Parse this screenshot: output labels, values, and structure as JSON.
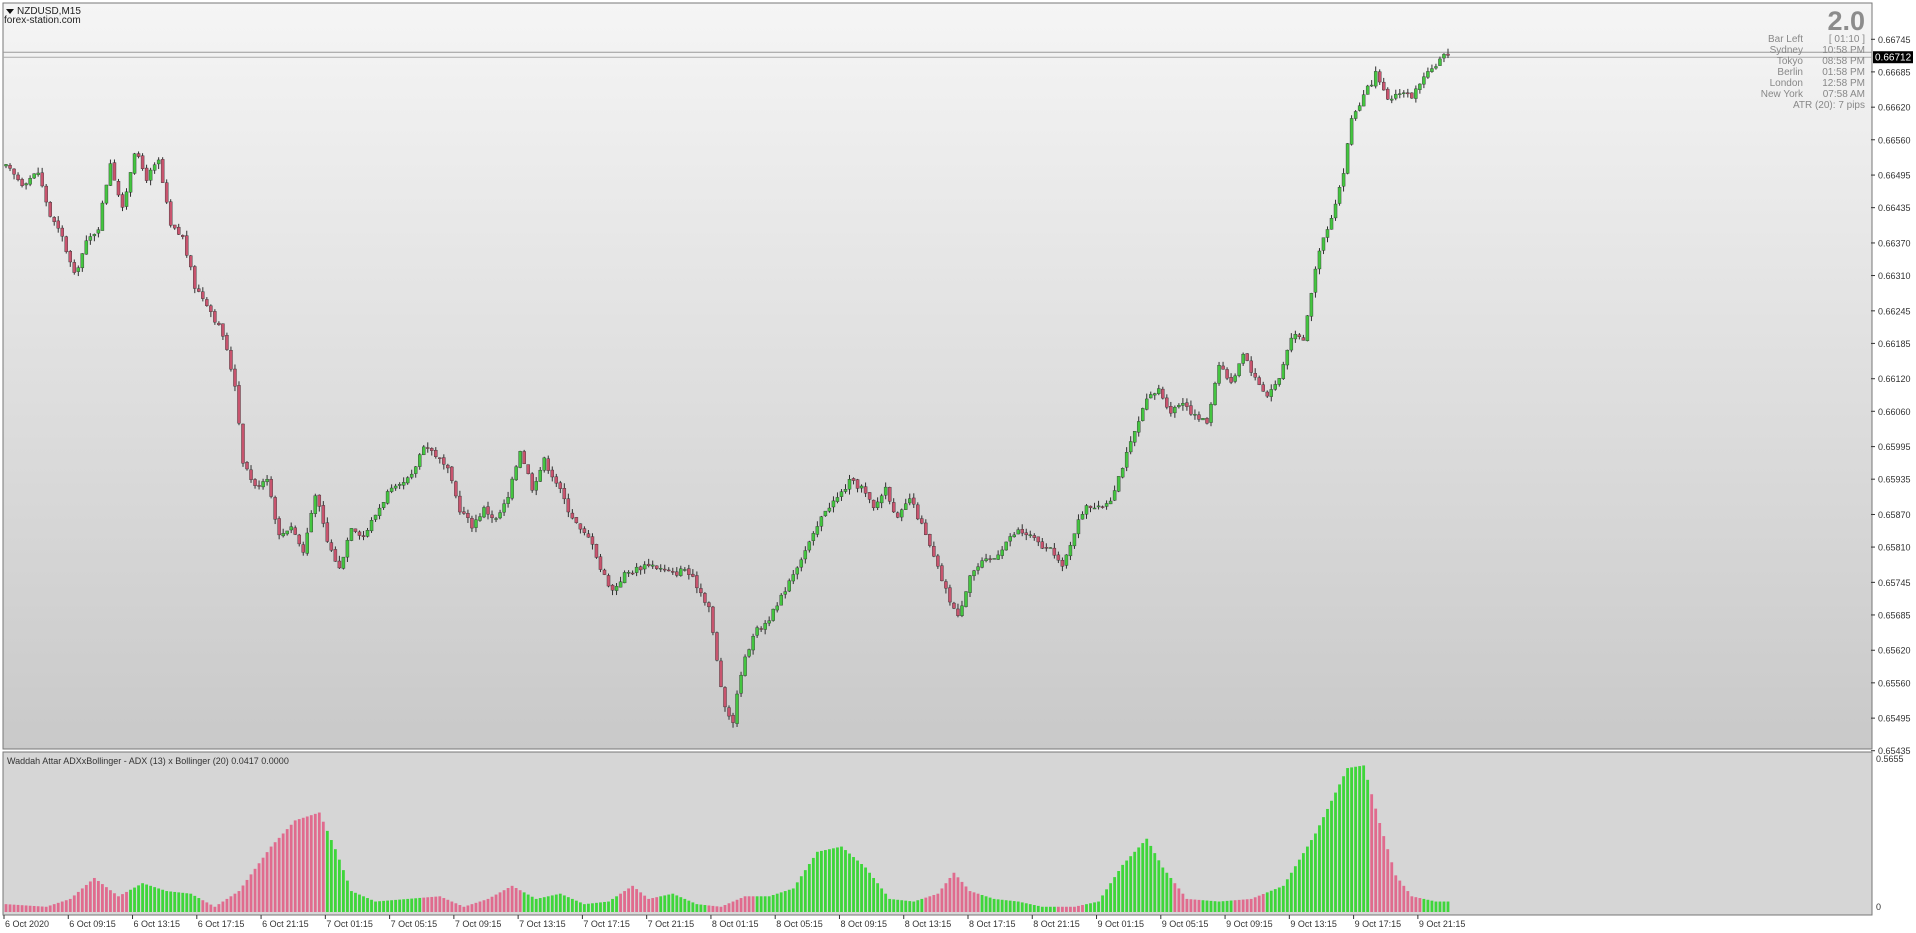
{
  "colors": {
    "bull": "#44c540",
    "bear": "#c8546e",
    "wick": "#2f2f2f",
    "hist_up": "#3ed63a",
    "hist_down": "#e06b8e",
    "bg_top": "#f5f5f5",
    "bg_bottom": "#c9c9c9"
  },
  "chart_data": [
    {
      "type": "candlestick",
      "title": "NZDUSD,M15",
      "watermark": "forex-station.com",
      "dropdown_icon": "triangle-down-icon",
      "ylim": [
        0.6544,
        0.6681
      ],
      "y_ticks": [
        "0.66745",
        "0.66685",
        "0.66620",
        "0.66560",
        "0.66495",
        "0.66435",
        "0.66370",
        "0.66310",
        "0.66245",
        "0.66185",
        "0.66120",
        "0.66060",
        "0.65995",
        "0.65935",
        "0.65870",
        "0.65810",
        "0.65745",
        "0.65685",
        "0.65620",
        "0.65560",
        "0.65495",
        "0.65435"
      ],
      "current_price": "0.66712",
      "x_ticks": [
        "6 Oct 2020",
        "6 Oct 09:15",
        "6 Oct 13:15",
        "6 Oct 17:15",
        "6 Oct 21:15",
        "7 Oct 01:15",
        "7 Oct 05:15",
        "7 Oct 09:15",
        "7 Oct 13:15",
        "7 Oct 17:15",
        "7 Oct 21:15",
        "8 Oct 01:15",
        "8 Oct 05:15",
        "8 Oct 09:15",
        "8 Oct 13:15",
        "8 Oct 17:15",
        "8 Oct 21:15",
        "9 Oct 01:15",
        "9 Oct 05:15",
        "9 Oct 09:15",
        "9 Oct 13:15",
        "9 Oct 17:15",
        "9 Oct 21:15"
      ],
      "close_path": [
        [
          0,
          0.6651
        ],
        [
          4,
          0.6648
        ],
        [
          8,
          0.665
        ],
        [
          11,
          0.6642
        ],
        [
          14,
          0.6638
        ],
        [
          17,
          0.6631
        ],
        [
          20,
          0.6637
        ],
        [
          23,
          0.664
        ],
        [
          26,
          0.6652
        ],
        [
          29,
          0.6643
        ],
        [
          32,
          0.6654
        ],
        [
          35,
          0.6649
        ],
        [
          38,
          0.6652
        ],
        [
          41,
          0.664
        ],
        [
          44,
          0.6638
        ],
        [
          47,
          0.6629
        ],
        [
          50,
          0.6626
        ],
        [
          54,
          0.662
        ],
        [
          57,
          0.6611
        ],
        [
          59,
          0.6597
        ],
        [
          62,
          0.6592
        ],
        [
          65,
          0.6594
        ],
        [
          68,
          0.6583
        ],
        [
          71,
          0.6585
        ],
        [
          74,
          0.658
        ],
        [
          77,
          0.6591
        ],
        [
          80,
          0.6582
        ],
        [
          83,
          0.6577
        ],
        [
          86,
          0.6585
        ],
        [
          89,
          0.6583
        ],
        [
          92,
          0.6587
        ],
        [
          95,
          0.6591
        ],
        [
          98,
          0.6592
        ],
        [
          101,
          0.6594
        ],
        [
          104,
          0.66
        ],
        [
          107,
          0.6598
        ],
        [
          110,
          0.6595
        ],
        [
          113,
          0.6588
        ],
        [
          116,
          0.6585
        ],
        [
          119,
          0.6588
        ],
        [
          122,
          0.6586
        ],
        [
          125,
          0.659
        ],
        [
          128,
          0.6599
        ],
        [
          131,
          0.6592
        ],
        [
          134,
          0.6597
        ],
        [
          137,
          0.6593
        ],
        [
          140,
          0.6588
        ],
        [
          143,
          0.6584
        ],
        [
          146,
          0.6582
        ],
        [
          148,
          0.6577
        ],
        [
          151,
          0.6573
        ],
        [
          154,
          0.6576
        ],
        [
          157,
          0.6577
        ],
        [
          160,
          0.6578
        ],
        [
          163,
          0.6577
        ],
        [
          166,
          0.6576
        ],
        [
          169,
          0.6577
        ],
        [
          172,
          0.6574
        ],
        [
          175,
          0.657
        ],
        [
          177,
          0.656
        ],
        [
          179,
          0.6551
        ],
        [
          181,
          0.6549
        ],
        [
          183,
          0.6558
        ],
        [
          186,
          0.6565
        ],
        [
          189,
          0.6567
        ],
        [
          192,
          0.657
        ],
        [
          195,
          0.6575
        ],
        [
          198,
          0.6579
        ],
        [
          201,
          0.6583
        ],
        [
          204,
          0.6588
        ],
        [
          207,
          0.659
        ],
        [
          210,
          0.6593
        ],
        [
          213,
          0.6592
        ],
        [
          216,
          0.6588
        ],
        [
          219,
          0.6592
        ],
        [
          222,
          0.6586
        ],
        [
          225,
          0.659
        ],
        [
          228,
          0.6585
        ],
        [
          231,
          0.6579
        ],
        [
          234,
          0.6573
        ],
        [
          237,
          0.6568
        ],
        [
          240,
          0.6576
        ],
        [
          243,
          0.6578
        ],
        [
          246,
          0.6579
        ],
        [
          249,
          0.6582
        ],
        [
          252,
          0.6584
        ],
        [
          255,
          0.6583
        ],
        [
          258,
          0.6581
        ],
        [
          261,
          0.658
        ],
        [
          263,
          0.6577
        ],
        [
          266,
          0.6584
        ],
        [
          269,
          0.6589
        ],
        [
          272,
          0.6588
        ],
        [
          275,
          0.659
        ],
        [
          278,
          0.6596
        ],
        [
          281,
          0.6602
        ],
        [
          284,
          0.6608
        ],
        [
          287,
          0.661
        ],
        [
          290,
          0.6606
        ],
        [
          293,
          0.6608
        ],
        [
          296,
          0.6605
        ],
        [
          299,
          0.6604
        ],
        [
          302,
          0.6615
        ],
        [
          305,
          0.6611
        ],
        [
          308,
          0.6617
        ],
        [
          311,
          0.6612
        ],
        [
          314,
          0.6609
        ],
        [
          317,
          0.6612
        ],
        [
          320,
          0.662
        ],
        [
          323,
          0.6619
        ],
        [
          325,
          0.6628
        ],
        [
          327,
          0.6636
        ],
        [
          330,
          0.6642
        ],
        [
          333,
          0.665
        ],
        [
          335,
          0.666
        ],
        [
          338,
          0.6664
        ],
        [
          341,
          0.6668
        ],
        [
          344,
          0.6663
        ],
        [
          347,
          0.6665
        ],
        [
          350,
          0.6664
        ],
        [
          353,
          0.6667
        ],
        [
          356,
          0.667
        ],
        [
          359,
          0.6672
        ]
      ],
      "info_panel": {
        "version": "2.0",
        "rows": [
          {
            "label": "Bar Left",
            "value": "[ 01:10 ]"
          },
          {
            "label": "Sydney",
            "value": "10:58 PM"
          },
          {
            "label": "Tokyo",
            "value": "08:58 PM"
          },
          {
            "label": "Berlin",
            "value": "01:58 PM"
          },
          {
            "label": "London",
            "value": "12:58 PM"
          },
          {
            "label": "New York",
            "value": "07:58 AM"
          }
        ],
        "atr": "ATR (20): 7 pips"
      }
    },
    {
      "type": "histogram",
      "title": "Waddah Attar ADXxBollinger - ADX (13) x Bollinger (20) 0.0417 0.0000",
      "ylim": [
        0,
        0.5655
      ],
      "y_ticks": [
        "0.5655",
        "0"
      ],
      "envelope": [
        [
          0,
          0.03,
          "down"
        ],
        [
          10,
          0.02,
          "down"
        ],
        [
          16,
          0.05,
          "down"
        ],
        [
          22,
          0.13,
          "down"
        ],
        [
          28,
          0.06,
          "down"
        ],
        [
          34,
          0.11,
          "up"
        ],
        [
          40,
          0.08,
          "up"
        ],
        [
          46,
          0.07,
          "up"
        ],
        [
          52,
          0.02,
          "down"
        ],
        [
          58,
          0.08,
          "down"
        ],
        [
          66,
          0.25,
          "down"
        ],
        [
          72,
          0.35,
          "down"
        ],
        [
          78,
          0.38,
          "down"
        ],
        [
          82,
          0.24,
          "up"
        ],
        [
          86,
          0.08,
          "up"
        ],
        [
          92,
          0.04,
          "up"
        ],
        [
          100,
          0.05,
          "up"
        ],
        [
          108,
          0.06,
          "down"
        ],
        [
          114,
          0.02,
          "down"
        ],
        [
          120,
          0.05,
          "down"
        ],
        [
          126,
          0.1,
          "down"
        ],
        [
          132,
          0.05,
          "up"
        ],
        [
          138,
          0.07,
          "up"
        ],
        [
          144,
          0.03,
          "up"
        ],
        [
          150,
          0.04,
          "up"
        ],
        [
          156,
          0.1,
          "down"
        ],
        [
          160,
          0.05,
          "down"
        ],
        [
          166,
          0.07,
          "up"
        ],
        [
          172,
          0.03,
          "up"
        ],
        [
          178,
          0.02,
          "down"
        ],
        [
          184,
          0.06,
          "down"
        ],
        [
          190,
          0.06,
          "up"
        ],
        [
          196,
          0.09,
          "up"
        ],
        [
          202,
          0.23,
          "up"
        ],
        [
          208,
          0.25,
          "up"
        ],
        [
          214,
          0.17,
          "up"
        ],
        [
          220,
          0.05,
          "up"
        ],
        [
          226,
          0.04,
          "up"
        ],
        [
          232,
          0.07,
          "down"
        ],
        [
          236,
          0.15,
          "down"
        ],
        [
          240,
          0.08,
          "down"
        ],
        [
          246,
          0.05,
          "up"
        ],
        [
          252,
          0.04,
          "up"
        ],
        [
          258,
          0.02,
          "up"
        ],
        [
          266,
          0.02,
          "down"
        ],
        [
          272,
          0.04,
          "up"
        ],
        [
          278,
          0.18,
          "up"
        ],
        [
          284,
          0.28,
          "up"
        ],
        [
          288,
          0.17,
          "up"
        ],
        [
          294,
          0.05,
          "down"
        ],
        [
          302,
          0.04,
          "up"
        ],
        [
          310,
          0.05,
          "down"
        ],
        [
          318,
          0.1,
          "up"
        ],
        [
          326,
          0.3,
          "up"
        ],
        [
          334,
          0.55,
          "up"
        ],
        [
          338,
          0.56,
          "up"
        ],
        [
          342,
          0.34,
          "down"
        ],
        [
          346,
          0.14,
          "down"
        ],
        [
          350,
          0.06,
          "down"
        ],
        [
          356,
          0.04,
          "up"
        ],
        [
          359,
          0.04,
          "up"
        ]
      ]
    }
  ]
}
